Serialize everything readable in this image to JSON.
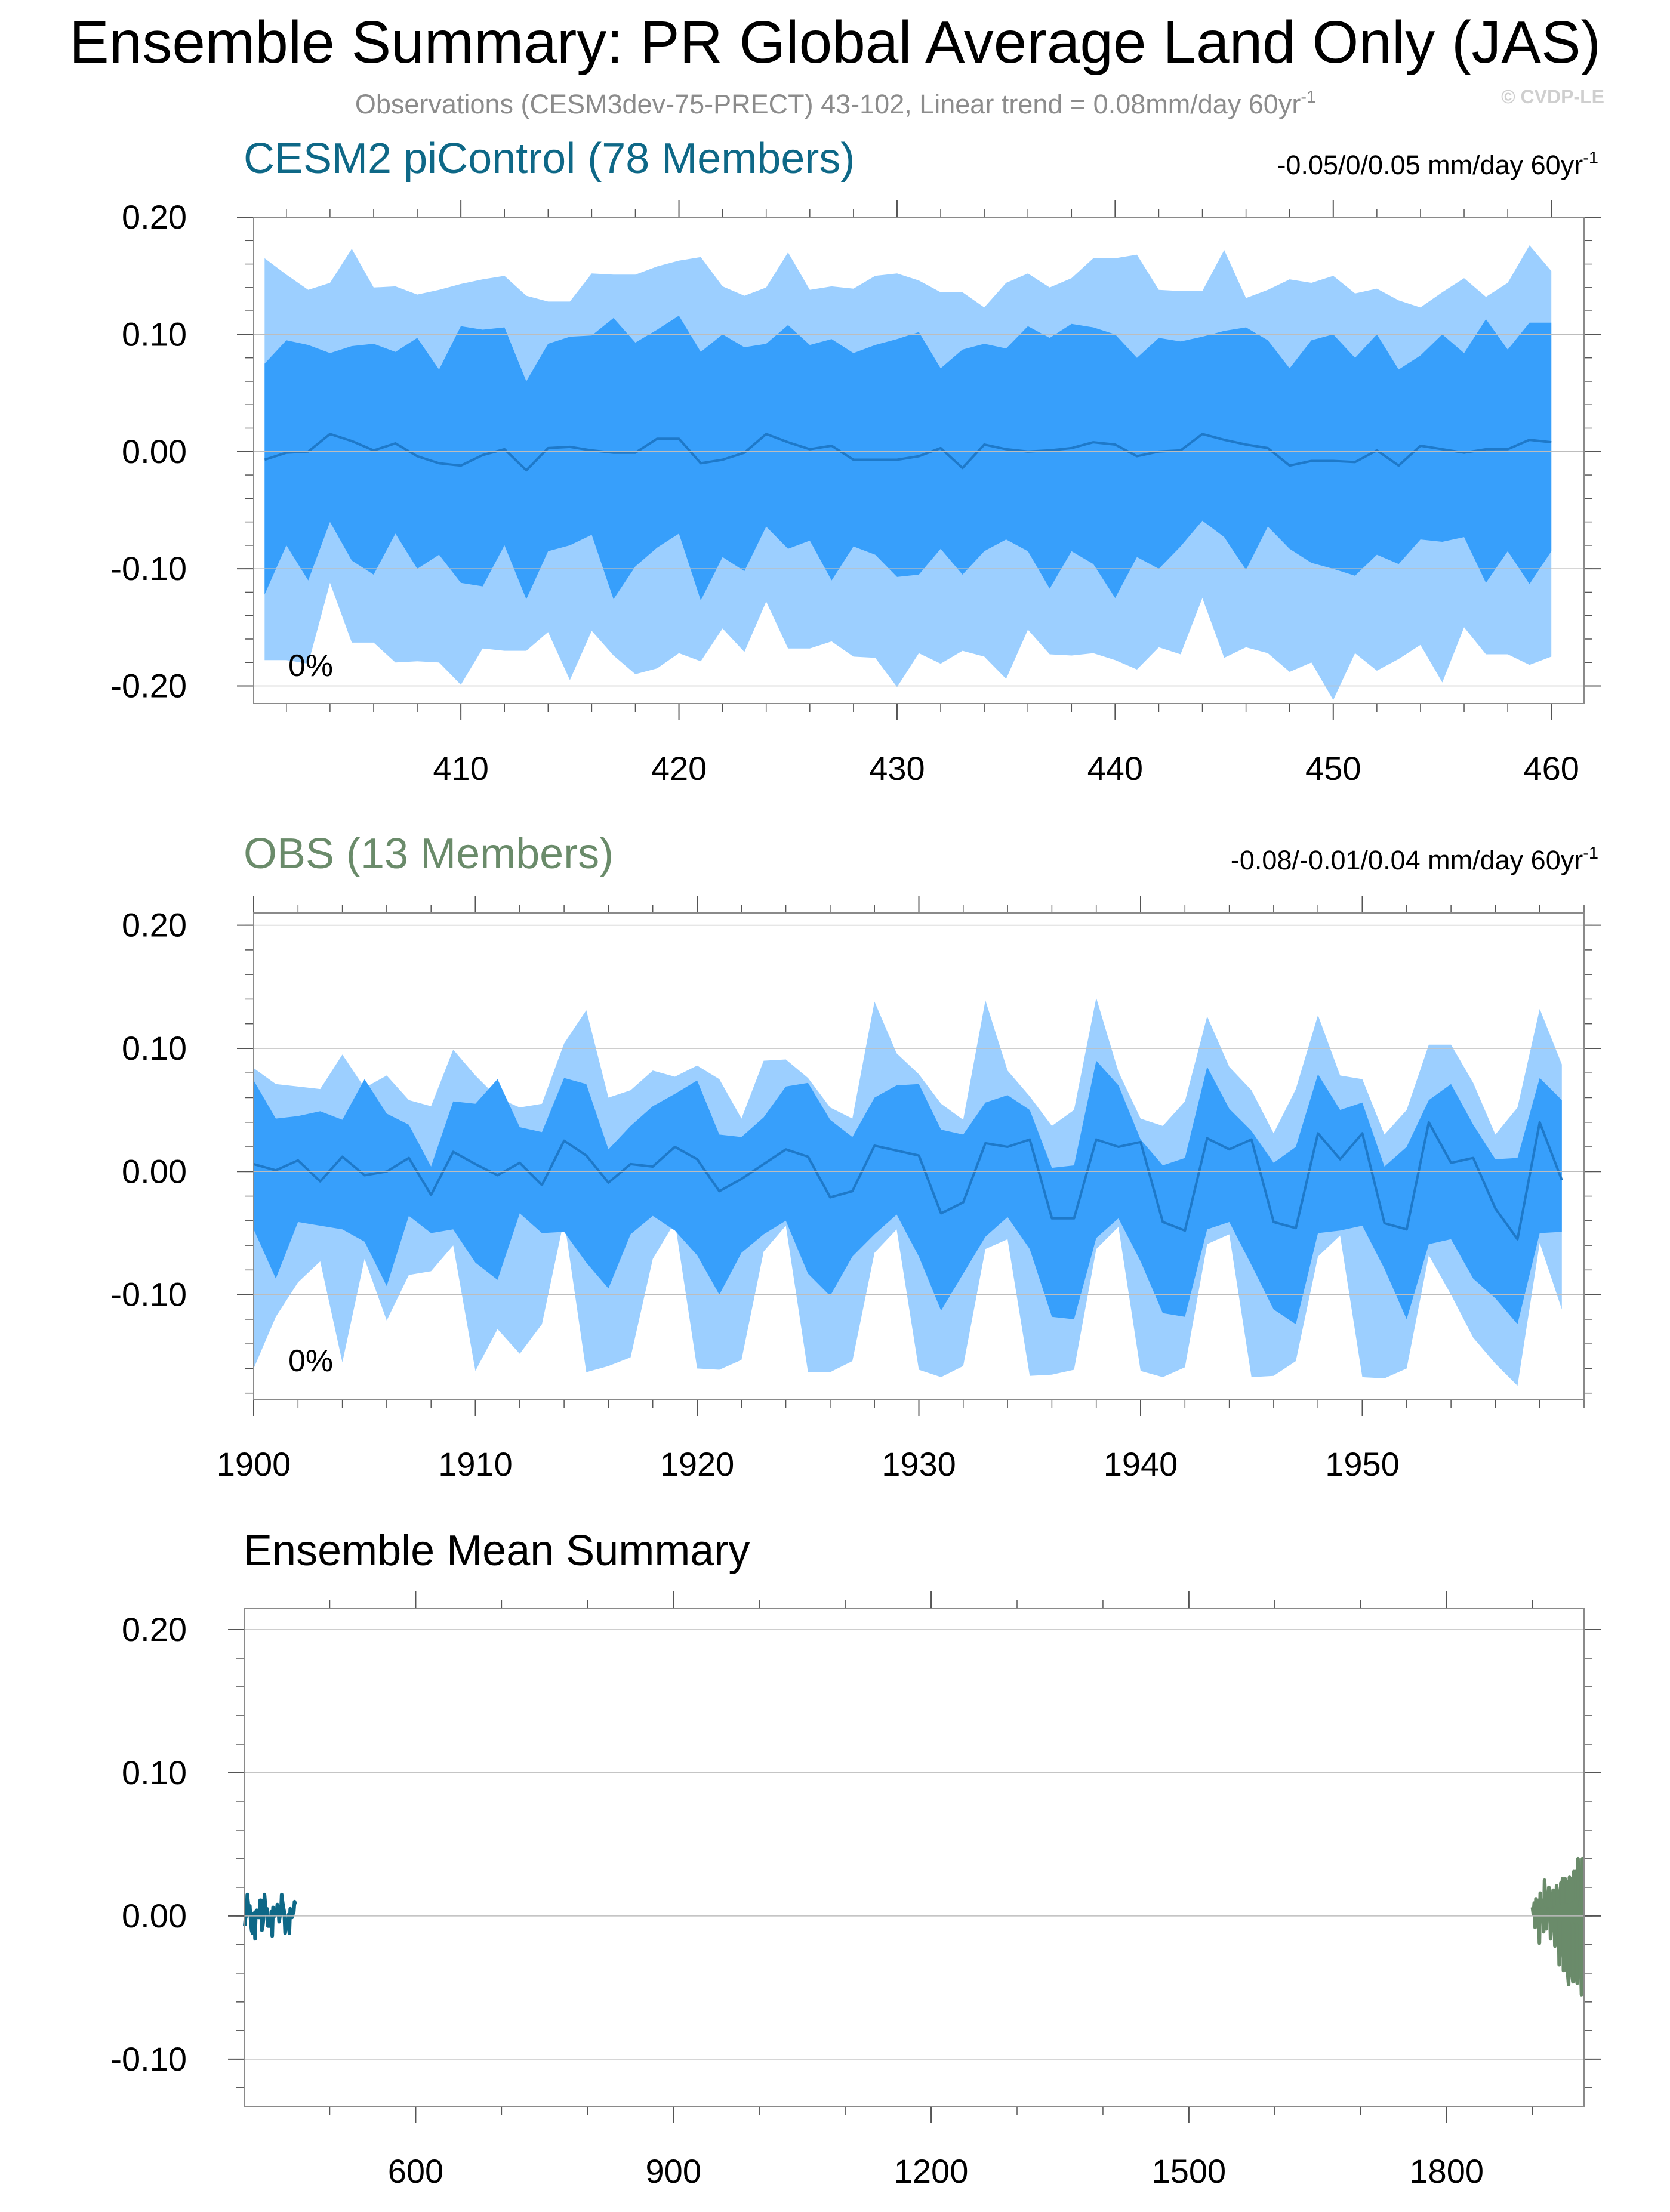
{
  "figure": {
    "title": "Ensemble Summary: PR Global Average Land Only (JAS)",
    "subtitle": "Observations (CESM3dev-75-PRECT) 43-102, Linear trend = 0.08mm/day 60yr",
    "subtitle_sup": "-1",
    "credit": "© CVDP-LE"
  },
  "colors": {
    "band_outer": "#9ccfff",
    "band_inner": "#379ffb",
    "mean_line": "#1e79c9",
    "cesm2": "#0e6887",
    "obs": "#6a8b6a",
    "axis": "#555555",
    "tick_label": "#000000"
  },
  "chart_data": [
    {
      "type": "area",
      "title": "CESM2 piControl (78 Members)",
      "trend_label": "-0.05/0/0.05 mm/day 60yr",
      "trend_sup": "-1",
      "pct_label": "0%",
      "title_color": "#0e6887",
      "xlim": [
        400.5,
        461.5
      ],
      "ylim": [
        -0.215,
        0.2
      ],
      "xticks": [
        410,
        420,
        430,
        440,
        450,
        460
      ],
      "xtick_labels": [
        "410",
        "420",
        "430",
        "440",
        "450",
        "460"
      ],
      "x_minor_step": 2,
      "yticks": [
        0.2,
        0.1,
        0.0,
        -0.1,
        -0.2
      ],
      "ytick_labels": [
        "0.20",
        "0.10",
        "0.00",
        "-0.10",
        "-0.20"
      ],
      "y_minor_step": 0.02,
      "x": [
        401,
        402,
        403,
        404,
        405,
        406,
        407,
        408,
        409,
        410,
        411,
        412,
        413,
        414,
        415,
        416,
        417,
        418,
        419,
        420,
        421,
        422,
        423,
        424,
        425,
        426,
        427,
        428,
        429,
        430,
        431,
        432,
        433,
        434,
        435,
        436,
        437,
        438,
        439,
        440,
        441,
        442,
        443,
        444,
        445,
        446,
        447,
        448,
        449,
        450,
        451,
        452,
        453,
        454,
        455,
        456,
        457,
        458,
        459,
        460
      ],
      "max": [
        0.165,
        0.151,
        0.138,
        0.144,
        0.173,
        0.14,
        0.141,
        0.134,
        0.138,
        0.143,
        0.147,
        0.15,
        0.133,
        0.128,
        0.128,
        0.152,
        0.151,
        0.151,
        0.158,
        0.163,
        0.166,
        0.141,
        0.133,
        0.14,
        0.17,
        0.138,
        0.141,
        0.139,
        0.15,
        0.152,
        0.146,
        0.136,
        0.136,
        0.123,
        0.144,
        0.152,
        0.14,
        0.148,
        0.165,
        0.165,
        0.168,
        0.138,
        0.137,
        0.137,
        0.172,
        0.131,
        0.138,
        0.147,
        0.144,
        0.15,
        0.135,
        0.139,
        0.129,
        0.123,
        0.136,
        0.148,
        0.132,
        0.144,
        0.176,
        0.154
      ],
      "upper": [
        0.075,
        0.095,
        0.091,
        0.084,
        0.09,
        0.092,
        0.085,
        0.097,
        0.07,
        0.107,
        0.104,
        0.106,
        0.06,
        0.092,
        0.098,
        0.099,
        0.114,
        0.093,
        0.104,
        0.116,
        0.085,
        0.1,
        0.089,
        0.092,
        0.108,
        0.091,
        0.096,
        0.084,
        0.091,
        0.096,
        0.102,
        0.071,
        0.087,
        0.092,
        0.088,
        0.107,
        0.097,
        0.109,
        0.106,
        0.1,
        0.08,
        0.097,
        0.094,
        0.098,
        0.103,
        0.106,
        0.095,
        0.071,
        0.095,
        0.1,
        0.08,
        0.1,
        0.07,
        0.082,
        0.1,
        0.084,
        0.113,
        0.087,
        0.11,
        0.11
      ],
      "mean": [
        -0.007,
        -0.001,
        0.0,
        0.015,
        0.009,
        0.001,
        0.007,
        -0.004,
        -0.01,
        -0.012,
        -0.003,
        0.002,
        -0.016,
        0.003,
        0.004,
        0.001,
        -0.001,
        -0.001,
        0.011,
        0.011,
        -0.01,
        -0.007,
        -0.001,
        0.015,
        0.008,
        0.002,
        0.005,
        -0.007,
        -0.007,
        -0.007,
        -0.004,
        0.003,
        -0.014,
        0.006,
        0.002,
        0.0,
        0.001,
        0.003,
        0.008,
        0.006,
        -0.004,
        0.0,
        0.001,
        0.015,
        0.01,
        0.006,
        0.003,
        -0.012,
        -0.008,
        -0.008,
        -0.009,
        0.001,
        -0.012,
        0.005,
        0.002,
        -0.001,
        0.002,
        0.002,
        0.01,
        0.008
      ],
      "lower": [
        -0.122,
        -0.08,
        -0.11,
        -0.06,
        -0.093,
        -0.105,
        -0.07,
        -0.1,
        -0.088,
        -0.112,
        -0.115,
        -0.08,
        -0.126,
        -0.085,
        -0.08,
        -0.071,
        -0.126,
        -0.098,
        -0.082,
        -0.07,
        -0.127,
        -0.09,
        -0.102,
        -0.064,
        -0.083,
        -0.076,
        -0.11,
        -0.081,
        -0.088,
        -0.107,
        -0.105,
        -0.083,
        -0.105,
        -0.085,
        -0.075,
        -0.085,
        -0.117,
        -0.085,
        -0.096,
        -0.125,
        -0.09,
        -0.1,
        -0.081,
        -0.059,
        -0.073,
        -0.101,
        -0.064,
        -0.083,
        -0.095,
        -0.1,
        -0.106,
        -0.088,
        -0.096,
        -0.075,
        -0.077,
        -0.073,
        -0.112,
        -0.085,
        -0.113,
        -0.085
      ],
      "min": [
        -0.178,
        -0.178,
        -0.181,
        -0.112,
        -0.163,
        -0.163,
        -0.18,
        -0.179,
        -0.18,
        -0.199,
        -0.168,
        -0.17,
        -0.17,
        -0.154,
        -0.195,
        -0.153,
        -0.174,
        -0.19,
        -0.185,
        -0.172,
        -0.179,
        -0.151,
        -0.171,
        -0.128,
        -0.168,
        -0.168,
        -0.162,
        -0.175,
        -0.176,
        -0.201,
        -0.172,
        -0.181,
        -0.17,
        -0.175,
        -0.194,
        -0.152,
        -0.173,
        -0.174,
        -0.172,
        -0.178,
        -0.186,
        -0.167,
        -0.173,
        -0.125,
        -0.176,
        -0.167,
        -0.172,
        -0.188,
        -0.18,
        -0.212,
        -0.172,
        -0.187,
        -0.177,
        -0.165,
        -0.197,
        -0.15,
        -0.173,
        -0.173,
        -0.182,
        -0.175
      ]
    },
    {
      "type": "area",
      "title": "OBS (13 Members)",
      "trend_label": "-0.08/-0.01/0.04 mm/day 60yr",
      "trend_sup": "-1",
      "pct_label": "0%",
      "title_color": "#6a8b6a",
      "xlim": [
        1900,
        1960
      ],
      "ylim": [
        -0.185,
        0.21
      ],
      "xticks": [
        1900,
        1910,
        1920,
        1930,
        1940,
        1950
      ],
      "xtick_labels": [
        "1900",
        "1910",
        "1920",
        "1930",
        "1940",
        "1950"
      ],
      "x_minor_step": 2,
      "yticks": [
        0.2,
        0.1,
        0.0,
        -0.1
      ],
      "ytick_labels": [
        "0.20",
        "0.10",
        "0.00",
        "-0.10"
      ],
      "y_minor_step": 0.02,
      "x": [
        1900,
        1901,
        1902,
        1903,
        1904,
        1905,
        1906,
        1907,
        1908,
        1909,
        1910,
        1911,
        1912,
        1913,
        1914,
        1915,
        1916,
        1917,
        1918,
        1919,
        1920,
        1921,
        1922,
        1923,
        1924,
        1925,
        1926,
        1927,
        1928,
        1929,
        1930,
        1931,
        1932,
        1933,
        1934,
        1935,
        1936,
        1937,
        1938,
        1939,
        1940,
        1941,
        1942,
        1943,
        1944,
        1945,
        1946,
        1947,
        1948,
        1949,
        1950,
        1951,
        1952,
        1953,
        1954,
        1955,
        1956,
        1957,
        1958,
        1959
      ],
      "max": [
        0.084,
        0.071,
        0.069,
        0.067,
        0.095,
        0.068,
        0.078,
        0.058,
        0.053,
        0.099,
        0.078,
        0.06,
        0.052,
        0.055,
        0.104,
        0.131,
        0.06,
        0.066,
        0.082,
        0.077,
        0.086,
        0.075,
        0.043,
        0.09,
        0.091,
        0.076,
        0.052,
        0.043,
        0.138,
        0.096,
        0.079,
        0.055,
        0.042,
        0.139,
        0.082,
        0.061,
        0.037,
        0.05,
        0.141,
        0.081,
        0.043,
        0.037,
        0.057,
        0.126,
        0.085,
        0.066,
        0.031,
        0.067,
        0.127,
        0.078,
        0.075,
        0.03,
        0.05,
        0.103,
        0.103,
        0.072,
        0.03,
        0.052,
        0.132,
        0.087
      ],
      "upper": [
        0.074,
        0.043,
        0.045,
        0.049,
        0.042,
        0.075,
        0.047,
        0.038,
        0.004,
        0.057,
        0.055,
        0.075,
        0.036,
        0.032,
        0.076,
        0.071,
        0.018,
        0.037,
        0.053,
        0.063,
        0.074,
        0.03,
        0.028,
        0.044,
        0.069,
        0.072,
        0.042,
        0.028,
        0.06,
        0.07,
        0.071,
        0.034,
        0.03,
        0.056,
        0.062,
        0.05,
        0.003,
        0.005,
        0.09,
        0.07,
        0.026,
        0.005,
        0.011,
        0.085,
        0.051,
        0.033,
        0.007,
        0.02,
        0.079,
        0.05,
        0.056,
        0.004,
        0.02,
        0.058,
        0.071,
        0.038,
        0.01,
        0.011,
        0.076,
        0.058
      ],
      "mean": [
        0.006,
        0.001,
        0.009,
        -0.008,
        0.012,
        -0.003,
        0.0,
        0.011,
        -0.019,
        0.016,
        0.006,
        -0.003,
        0.007,
        -0.011,
        0.025,
        0.013,
        -0.009,
        0.006,
        0.004,
        0.02,
        0.01,
        -0.016,
        -0.006,
        0.006,
        0.018,
        0.012,
        -0.021,
        -0.016,
        0.021,
        0.017,
        0.013,
        -0.034,
        -0.025,
        0.023,
        0.02,
        0.026,
        -0.038,
        -0.038,
        0.026,
        0.02,
        0.024,
        -0.041,
        -0.048,
        0.027,
        0.018,
        0.026,
        -0.041,
        -0.046,
        0.031,
        0.01,
        0.031,
        -0.042,
        -0.047,
        0.04,
        0.007,
        0.011,
        -0.03,
        -0.055,
        0.04,
        -0.007
      ],
      "lower": [
        -0.047,
        -0.087,
        -0.041,
        -0.044,
        -0.047,
        -0.057,
        -0.093,
        -0.036,
        -0.05,
        -0.047,
        -0.074,
        -0.088,
        -0.034,
        -0.05,
        -0.049,
        -0.074,
        -0.095,
        -0.051,
        -0.036,
        -0.048,
        -0.068,
        -0.1,
        -0.066,
        -0.051,
        -0.04,
        -0.083,
        -0.101,
        -0.069,
        -0.051,
        -0.035,
        -0.069,
        -0.113,
        -0.083,
        -0.053,
        -0.037,
        -0.063,
        -0.118,
        -0.12,
        -0.054,
        -0.038,
        -0.073,
        -0.115,
        -0.118,
        -0.047,
        -0.041,
        -0.076,
        -0.112,
        -0.124,
        -0.05,
        -0.048,
        -0.044,
        -0.079,
        -0.12,
        -0.059,
        -0.055,
        -0.087,
        -0.103,
        -0.124,
        -0.05,
        -0.049
      ],
      "min": [
        -0.16,
        -0.118,
        -0.09,
        -0.073,
        -0.155,
        -0.071,
        -0.121,
        -0.084,
        -0.081,
        -0.06,
        -0.162,
        -0.128,
        -0.148,
        -0.124,
        -0.039,
        -0.163,
        -0.158,
        -0.151,
        -0.071,
        -0.041,
        -0.16,
        -0.161,
        -0.153,
        -0.065,
        -0.044,
        -0.163,
        -0.163,
        -0.154,
        -0.066,
        -0.047,
        -0.161,
        -0.167,
        -0.158,
        -0.063,
        -0.055,
        -0.166,
        -0.165,
        -0.161,
        -0.063,
        -0.045,
        -0.162,
        -0.167,
        -0.159,
        -0.059,
        -0.051,
        -0.167,
        -0.166,
        -0.154,
        -0.069,
        -0.052,
        -0.167,
        -0.168,
        -0.16,
        -0.068,
        -0.1,
        -0.135,
        -0.156,
        -0.174,
        -0.058,
        -0.112
      ]
    },
    {
      "type": "line",
      "title": "Ensemble Mean Summary",
      "xlim": [
        401,
        1960
      ],
      "ylim": [
        -0.133,
        0.215
      ],
      "xticks": [
        600,
        900,
        1200,
        1500,
        1800
      ],
      "xtick_labels": [
        "600",
        "900",
        "1200",
        "1500",
        "1800"
      ],
      "x_minor_step": 100,
      "yticks": [
        0.2,
        0.1,
        0.0,
        -0.1
      ],
      "ytick_labels": [
        "0.20",
        "0.10",
        "0.00",
        "-0.10"
      ],
      "y_minor_step": 0.02,
      "series": [
        {
          "source": "panel-0",
          "color": "#0e6887"
        },
        {
          "source": "panel-1",
          "color": "#6a8b6a"
        }
      ]
    }
  ]
}
